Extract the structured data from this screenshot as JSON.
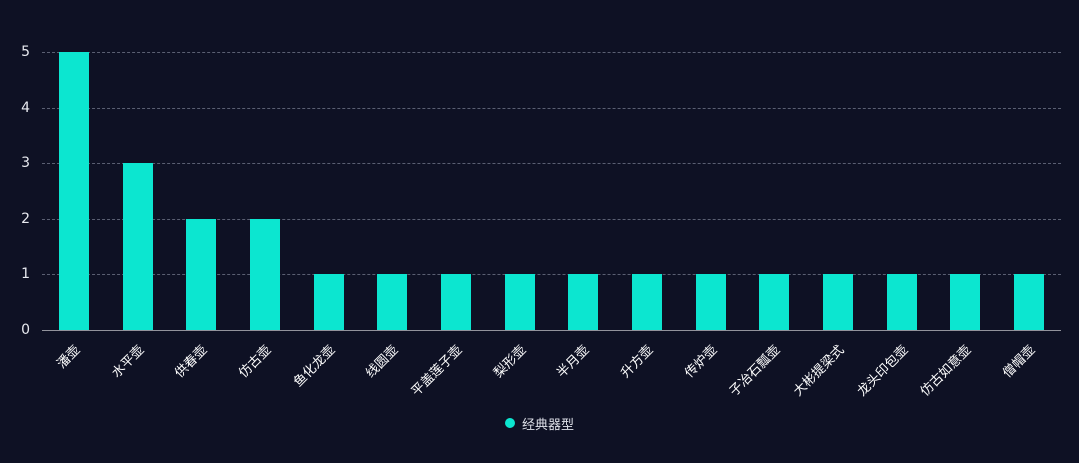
{
  "chart_data": {
    "type": "bar",
    "title": "",
    "xlabel": "",
    "ylabel": "",
    "categories": [
      "潘壶",
      "水平壶",
      "供春壶",
      "仿古壶",
      "鱼化龙壶",
      "线圆壶",
      "平盖莲子壶",
      "梨形壶",
      "半月壶",
      "升方壶",
      "传炉壶",
      "子冶石瓢壶",
      "大彬提梁式",
      "龙头印包壶",
      "仿古如意壶",
      "僧帽壶"
    ],
    "values": [
      5,
      3,
      2,
      2,
      1,
      1,
      1,
      1,
      1,
      1,
      1,
      1,
      1,
      1,
      1,
      1
    ],
    "ylim": [
      0,
      5
    ],
    "yticks": [
      0,
      1,
      2,
      3,
      4,
      5
    ],
    "grid": true,
    "legend": {
      "label": "经典器型",
      "position": "bottom"
    },
    "colors": {
      "bar": "#0ce6d0",
      "background": "#0e1124",
      "grid": "#5a5f72",
      "tick_text": "#e8eaf0",
      "category_text": "#ffffff",
      "legend_text": "#dde0e8"
    }
  }
}
